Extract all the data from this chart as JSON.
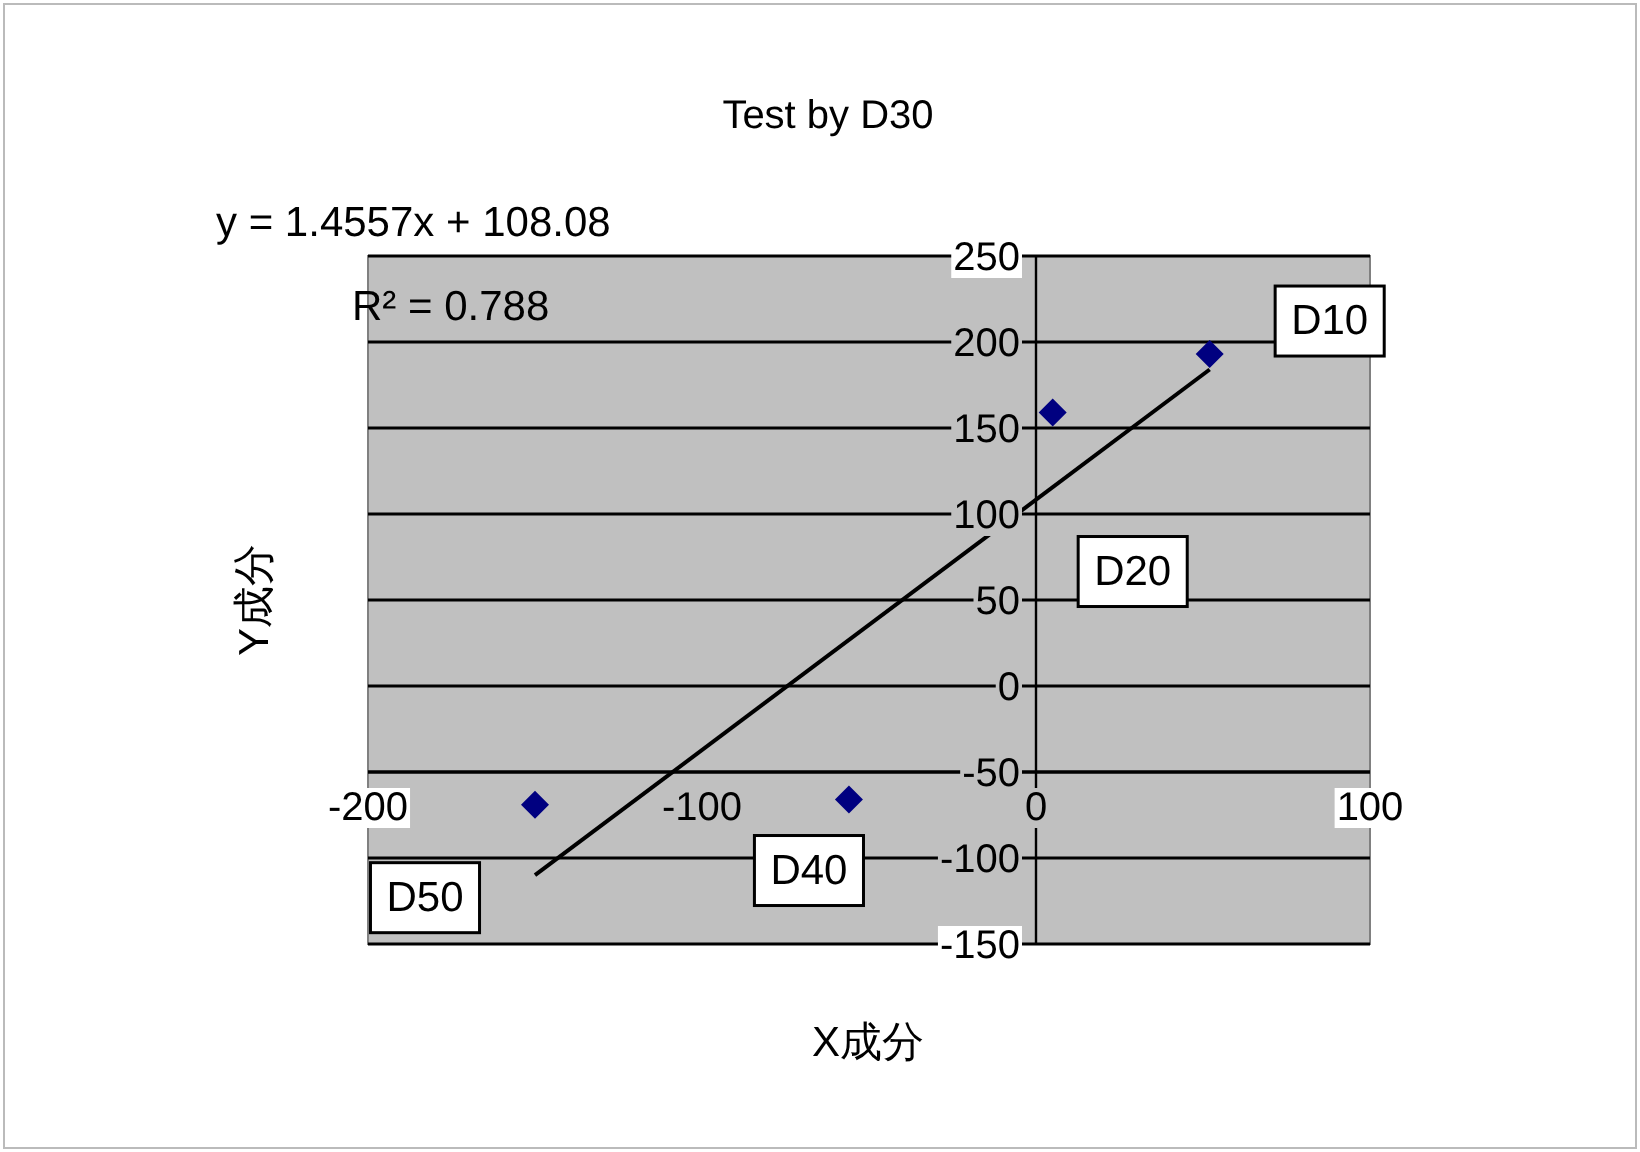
{
  "chart_data": {
    "type": "scatter",
    "title": "Test by D30",
    "xlabel": "X成分",
    "ylabel": "Y成分",
    "annotations": [
      "y = 1.4557x + 108.08",
      "R² = 0.788"
    ],
    "series": [
      {
        "color": "#000080",
        "marker": "diamond",
        "x": [
          52,
          5,
          -56,
          -150
        ],
        "values": [
          193,
          159,
          -66,
          -69
        ],
        "value_labels": [
          "D10",
          "D20",
          "D40",
          "D50"
        ]
      },
      {
        "type": "line",
        "color": "#000000",
        "marker": "none",
        "x": [
          -150,
          52
        ],
        "values": [
          -110,
          184
        ]
      }
    ],
    "xlim": [
      -200,
      100
    ],
    "xticks": [
      -200,
      -100,
      0,
      100
    ],
    "ylim": [
      -150,
      250
    ],
    "yticks": [
      -150,
      -100,
      -50,
      0,
      50,
      100,
      150,
      200,
      250
    ],
    "grid": "y",
    "legend": false
  }
}
